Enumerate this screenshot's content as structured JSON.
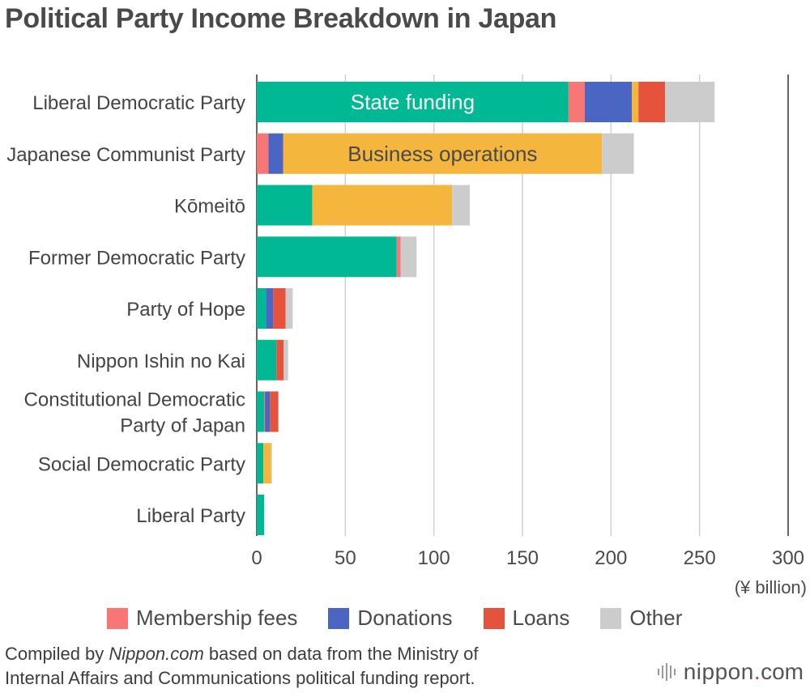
{
  "header": {
    "title": "Political Party Income Breakdown in Japan"
  },
  "chart_data": {
    "type": "bar",
    "orientation": "horizontal",
    "stacked": true,
    "title": "Political Party Income Breakdown in Japan",
    "unit": "(¥ billion)",
    "xlim": [
      0,
      300
    ],
    "xticks": [
      "0",
      "50",
      "100",
      "150",
      "200",
      "250",
      "300"
    ],
    "grid": true,
    "legend_position": "bottom",
    "categories": [
      "Liberal Democratic Party",
      "Japanese Communist Party",
      "Kōmeitō",
      "Former Democratic Party",
      "Party of Hope",
      "Nippon Ishin no Kai",
      "Constitutional Democratic Party of Japan",
      "Social Democratic Party",
      "Liberal Party"
    ],
    "category_lines": [
      [
        "Liberal Democratic Party"
      ],
      [
        "Japanese Communist Party"
      ],
      [
        "Kōmeitō"
      ],
      [
        "Former Democratic Party"
      ],
      [
        "Party of Hope"
      ],
      [
        "Nippon Ishin no Kai"
      ],
      [
        "Constitutional Democratic",
        "Party of Japan"
      ],
      [
        "Social Democratic Party"
      ],
      [
        "Liberal Party"
      ]
    ],
    "series": [
      {
        "name": "State funding",
        "color": "#00b894",
        "values": [
          176.0,
          0.0,
          31.3,
          79.0,
          5.3,
          11.1,
          4.1,
          3.7,
          4.2
        ]
      },
      {
        "name": "Membership fees",
        "color": "#f87676",
        "values": [
          9.2,
          6.6,
          0.0,
          2.2,
          0.0,
          0.0,
          0.5,
          0.0,
          0.0
        ]
      },
      {
        "name": "Donations",
        "color": "#4b66c2",
        "values": [
          26.6,
          8.3,
          0.0,
          0.0,
          4.0,
          0.0,
          2.8,
          0.0,
          0.0
        ]
      },
      {
        "name": "Business operations",
        "color": "#f5b63d",
        "values": [
          3.7,
          180.0,
          79.0,
          0.0,
          0.0,
          0.0,
          0.0,
          4.4,
          0.0
        ]
      },
      {
        "name": "Loans",
        "color": "#e5533d",
        "values": [
          15.0,
          0.0,
          0.0,
          0.0,
          7.0,
          4.1,
          4.7,
          0.0,
          0.0
        ]
      },
      {
        "name": "Other",
        "color": "#cccccc",
        "values": [
          28.0,
          18.0,
          10.0,
          9.0,
          4.0,
          2.5,
          0.3,
          0.5,
          0.0
        ]
      }
    ],
    "inline_labels": [
      {
        "series": "State funding",
        "category": "Liberal Democratic Party",
        "text": "State funding"
      },
      {
        "series": "Business operations",
        "category": "Japanese Communist Party",
        "text": "Business operations"
      }
    ]
  },
  "legend": {
    "items": [
      {
        "label": "Membership fees",
        "color": "#f87676"
      },
      {
        "label": "Donations",
        "color": "#4b66c2"
      },
      {
        "label": "Loans",
        "color": "#e5533d"
      },
      {
        "label": "Other",
        "color": "#cccccc"
      }
    ]
  },
  "source": {
    "prefix": "Compiled by ",
    "site": "Nippon.com",
    "line1_rest": " based on data from the Ministry of",
    "line2": "Internal Affairs and Communications political funding report."
  },
  "logo": {
    "word": "nippon",
    "dot": ".",
    "com": "com",
    "icon": "sound-wave-icon"
  }
}
